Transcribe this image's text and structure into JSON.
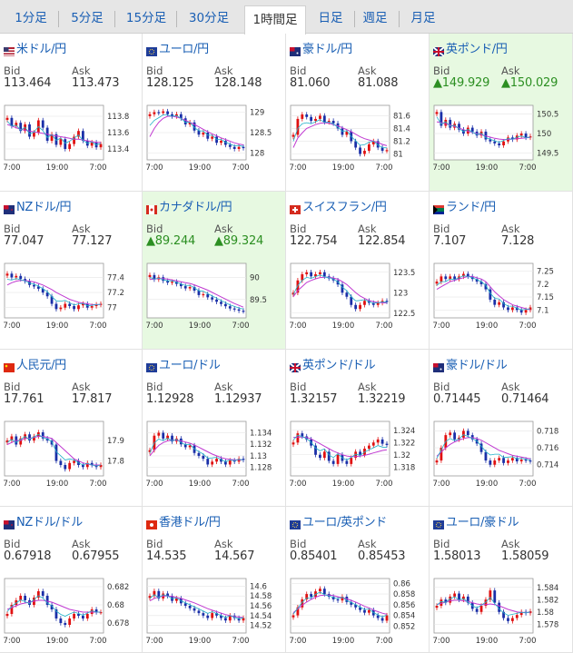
{
  "tabs": [
    {
      "label": "1分足",
      "active": false
    },
    {
      "label": "5分足",
      "active": false
    },
    {
      "label": "15分足",
      "active": false
    },
    {
      "label": "30分足",
      "active": false
    },
    {
      "label": "1時間足",
      "active": true
    },
    {
      "label": "日足",
      "active": false
    },
    {
      "label": "週足",
      "active": false
    },
    {
      "label": "月足",
      "active": false
    }
  ],
  "field_labels": {
    "bid": "Bid",
    "ask": "Ask"
  },
  "pairs": [
    {
      "name": "米ドル/円",
      "bid": "113.464",
      "ask": "113.473",
      "trend": "",
      "ticks": [
        "113.8",
        "113.6",
        "113.4"
      ],
      "ymin": 113.3,
      "ymax": 113.9,
      "x_labels": [
        "7:00",
        "19:00",
        "7:00"
      ],
      "candles": [
        113.78,
        113.68,
        113.72,
        113.62,
        113.7,
        113.55,
        113.6,
        113.75,
        113.66,
        113.5,
        113.58,
        113.45,
        113.52,
        113.4,
        113.46,
        113.55,
        113.62,
        113.5,
        113.44,
        113.48,
        113.42,
        113.46
      ],
      "ma": [
        113.7,
        113.68,
        113.66,
        113.64,
        113.63,
        113.62,
        113.61,
        113.6,
        113.59,
        113.58,
        113.57,
        113.56,
        113.55,
        113.54,
        113.53,
        113.52,
        113.52,
        113.51,
        113.5,
        113.49,
        113.48,
        113.48
      ],
      "flag": "us-jp",
      "highlight": false
    },
    {
      "name": "ユーロ/円",
      "bid": "128.125",
      "ask": "128.148",
      "trend": "",
      "ticks": [
        "129",
        "128.5",
        "128"
      ],
      "ymin": 127.9,
      "ymax": 129.1,
      "x_labels": [
        "7:00",
        "19:00",
        "7:00"
      ],
      "candles": [
        128.95,
        129.0,
        128.98,
        129.02,
        128.95,
        128.9,
        128.95,
        128.85,
        128.7,
        128.75,
        128.55,
        128.45,
        128.5,
        128.35,
        128.4,
        128.25,
        128.3,
        128.2,
        128.15,
        128.1,
        128.15,
        128.12
      ],
      "ma": [
        128.4,
        128.6,
        128.75,
        128.85,
        128.9,
        128.9,
        128.88,
        128.85,
        128.8,
        128.75,
        128.7,
        128.64,
        128.58,
        128.52,
        128.47,
        128.42,
        128.37,
        128.33,
        128.29,
        128.25,
        128.22,
        128.2
      ],
      "flag": "eu-jp",
      "highlight": false
    },
    {
      "name": "豪ドル/円",
      "bid": "81.060",
      "ask": "81.088",
      "trend": "",
      "ticks": [
        "81.6",
        "81.4",
        "81.2",
        "81"
      ],
      "ymin": 80.95,
      "ymax": 81.72,
      "x_labels": [
        "7:00",
        "19:00",
        "7:00"
      ],
      "candles": [
        81.3,
        81.55,
        81.62,
        81.58,
        81.52,
        81.55,
        81.6,
        81.5,
        81.52,
        81.48,
        81.4,
        81.3,
        81.35,
        81.2,
        81.1,
        81.0,
        81.05,
        81.15,
        81.2,
        81.1,
        81.05,
        81.06
      ],
      "ma": [
        81.1,
        81.25,
        81.33,
        81.4,
        81.43,
        81.46,
        81.48,
        81.49,
        81.48,
        81.46,
        81.44,
        81.41,
        81.38,
        81.35,
        81.31,
        81.27,
        81.24,
        81.22,
        81.2,
        81.18,
        81.15,
        81.13
      ],
      "flag": "au-jp",
      "highlight": false
    },
    {
      "name": "英ポンド/円",
      "bid": "▲149.929",
      "ask": "▲150.029",
      "trend": "up",
      "ticks": [
        "150.5",
        "150",
        "149.5"
      ],
      "ymin": 149.4,
      "ymax": 150.65,
      "x_labels": [
        "7:00",
        "19:00",
        "7:00"
      ],
      "candles": [
        150.55,
        150.2,
        150.35,
        150.15,
        150.25,
        150.1,
        150.0,
        150.15,
        150.05,
        149.95,
        150.05,
        149.85,
        149.8,
        149.75,
        149.7,
        149.8,
        149.9,
        149.85,
        149.95,
        150.0,
        149.9,
        149.93
      ],
      "ma": [
        150.3,
        150.28,
        150.25,
        150.22,
        150.18,
        150.14,
        150.1,
        150.06,
        150.03,
        150.0,
        149.97,
        149.94,
        149.91,
        149.88,
        149.86,
        149.85,
        149.85,
        149.86,
        149.87,
        149.88,
        149.89,
        149.9
      ],
      "flag": "gb-jp",
      "highlight": true
    },
    {
      "name": "NZドル/円",
      "bid": "77.047",
      "ask": "77.127",
      "trend": "",
      "ticks": [
        "77.4",
        "77.2",
        "77"
      ],
      "ymin": 76.9,
      "ymax": 77.55,
      "x_labels": [
        "7:00",
        "19:00",
        "7:00"
      ],
      "candles": [
        77.45,
        77.4,
        77.42,
        77.38,
        77.35,
        77.3,
        77.28,
        77.25,
        77.2,
        77.15,
        77.05,
        76.98,
        77.0,
        77.05,
        77.02,
        76.98,
        77.03,
        77.05,
        77.0,
        77.02,
        77.04,
        77.05
      ],
      "ma": [
        77.3,
        77.33,
        77.35,
        77.36,
        77.36,
        77.35,
        77.34,
        77.32,
        77.3,
        77.27,
        77.24,
        77.2,
        77.17,
        77.14,
        77.11,
        77.09,
        77.07,
        77.06,
        77.05,
        77.04,
        77.04,
        77.04
      ],
      "flag": "nz-jp",
      "highlight": false
    },
    {
      "name": "カナダドル/円",
      "bid": "▲89.244",
      "ask": "▲89.324",
      "trend": "up",
      "ticks": [
        "90",
        "89.5"
      ],
      "ymin": 89.15,
      "ymax": 90.25,
      "x_labels": [
        "7:00",
        "19:00",
        "7:00"
      ],
      "candles": [
        90.05,
        89.95,
        90.0,
        89.92,
        89.88,
        89.9,
        89.85,
        89.8,
        89.75,
        89.78,
        89.7,
        89.6,
        89.62,
        89.55,
        89.5,
        89.45,
        89.4,
        89.35,
        89.3,
        89.28,
        89.25,
        89.24
      ],
      "ma": [
        89.95,
        89.96,
        89.97,
        89.97,
        89.96,
        89.94,
        89.92,
        89.9,
        89.88,
        89.86,
        89.83,
        89.79,
        89.75,
        89.71,
        89.66,
        89.61,
        89.56,
        89.51,
        89.46,
        89.41,
        89.37,
        89.33
      ],
      "flag": "ca-jp",
      "highlight": true
    },
    {
      "name": "スイスフラン/円",
      "bid": "122.754",
      "ask": "122.854",
      "trend": "",
      "ticks": [
        "123.5",
        "123",
        "122.5"
      ],
      "ymin": 122.45,
      "ymax": 123.65,
      "x_labels": [
        "7:00",
        "19:00",
        "7:00"
      ],
      "candles": [
        123.0,
        123.3,
        123.45,
        123.5,
        123.4,
        123.45,
        123.5,
        123.4,
        123.35,
        123.3,
        123.2,
        123.0,
        122.9,
        122.7,
        122.6,
        122.7,
        122.8,
        122.75,
        122.7,
        122.75,
        122.8,
        122.78
      ],
      "ma": [
        122.9,
        123.05,
        123.15,
        123.25,
        123.3,
        123.34,
        123.37,
        123.38,
        123.38,
        123.36,
        123.33,
        123.27,
        123.2,
        123.1,
        123.0,
        122.92,
        122.86,
        122.81,
        122.78,
        122.76,
        122.75,
        122.75
      ],
      "flag": "ch-jp",
      "highlight": false
    },
    {
      "name": "ランド/円",
      "bid": "7.107",
      "ask": "7.128",
      "trend": "",
      "ticks": [
        "7.25",
        "7.2",
        "7.15",
        "7.1"
      ],
      "ymin": 7.08,
      "ymax": 7.27,
      "x_labels": [
        "7:00",
        "19:00",
        "7:00"
      ],
      "candles": [
        7.21,
        7.23,
        7.22,
        7.23,
        7.22,
        7.23,
        7.24,
        7.23,
        7.22,
        7.21,
        7.2,
        7.18,
        7.14,
        7.12,
        7.13,
        7.11,
        7.1,
        7.11,
        7.1,
        7.09,
        7.1,
        7.11
      ],
      "ma": [
        7.18,
        7.19,
        7.2,
        7.21,
        7.215,
        7.22,
        7.225,
        7.23,
        7.23,
        7.225,
        7.22,
        7.21,
        7.19,
        7.17,
        7.155,
        7.14,
        7.13,
        7.12,
        7.115,
        7.11,
        7.105,
        7.1
      ],
      "flag": "za-jp",
      "highlight": false
    },
    {
      "name": "人民元/円",
      "bid": "17.761",
      "ask": "17.817",
      "trend": "",
      "ticks": [
        "17.9",
        "17.8"
      ],
      "ymin": 17.74,
      "ymax": 17.98,
      "x_labels": [
        "7:00",
        "19:00",
        "7:00"
      ],
      "candles": [
        17.9,
        17.92,
        17.88,
        17.91,
        17.93,
        17.9,
        17.92,
        17.94,
        17.91,
        17.9,
        17.88,
        17.8,
        17.78,
        17.76,
        17.79,
        17.8,
        17.78,
        17.77,
        17.79,
        17.78,
        17.77,
        17.78
      ],
      "ma": [
        17.88,
        17.89,
        17.9,
        17.9,
        17.91,
        17.91,
        17.915,
        17.92,
        17.92,
        17.915,
        17.91,
        17.89,
        17.87,
        17.85,
        17.83,
        17.81,
        17.8,
        17.79,
        17.785,
        17.78,
        17.78,
        17.78
      ],
      "flag": "cn-jp",
      "highlight": false
    },
    {
      "name": "ユーロ/ドル",
      "bid": "1.12928",
      "ask": "1.12937",
      "trend": "",
      "ticks": [
        "1.134",
        "1.132",
        "1.13",
        "1.128"
      ],
      "ymin": 1.127,
      "ymax": 1.1355,
      "x_labels": [
        "7:00",
        "19:00",
        "7:00"
      ],
      "candles": [
        1.131,
        1.1335,
        1.134,
        1.133,
        1.1335,
        1.1325,
        1.133,
        1.132,
        1.1315,
        1.1318,
        1.1305,
        1.13,
        1.1295,
        1.1285,
        1.129,
        1.1295,
        1.129,
        1.1285,
        1.1292,
        1.129,
        1.1295,
        1.1293
      ],
      "ma": [
        1.13,
        1.131,
        1.1318,
        1.1323,
        1.1326,
        1.1327,
        1.1327,
        1.1326,
        1.1324,
        1.1322,
        1.1319,
        1.1315,
        1.1311,
        1.1307,
        1.1303,
        1.13,
        1.1297,
        1.1295,
        1.1294,
        1.1293,
        1.1293,
        1.1293
      ],
      "flag": "eu-us",
      "highlight": false
    },
    {
      "name": "英ポンド/ドル",
      "bid": "1.32157",
      "ask": "1.32219",
      "trend": "",
      "ticks": [
        "1.324",
        "1.322",
        "1.32",
        "1.318"
      ],
      "ymin": 1.317,
      "ymax": 1.325,
      "x_labels": [
        "7:00",
        "19:00",
        "7:00"
      ],
      "candles": [
        1.322,
        1.3235,
        1.323,
        1.3225,
        1.3215,
        1.32,
        1.3195,
        1.3205,
        1.319,
        1.3185,
        1.32,
        1.319,
        1.3185,
        1.3195,
        1.3205,
        1.32,
        1.321,
        1.3215,
        1.322,
        1.3225,
        1.3218,
        1.3216
      ],
      "ma": [
        1.3228,
        1.3229,
        1.3229,
        1.3228,
        1.3226,
        1.3222,
        1.3218,
        1.3214,
        1.321,
        1.3206,
        1.3203,
        1.32,
        1.3198,
        1.3197,
        1.3197,
        1.3198,
        1.3199,
        1.3201,
        1.3203,
        1.3205,
        1.3207,
        1.3208
      ],
      "flag": "gb-us",
      "highlight": false
    },
    {
      "name": "豪ドル/ドル",
      "bid": "0.71445",
      "ask": "0.71464",
      "trend": "",
      "ticks": [
        "0.718",
        "0.716",
        "0.714"
      ],
      "ymin": 0.713,
      "ymax": 0.7188,
      "x_labels": [
        "7:00",
        "19:00",
        "7:00"
      ],
      "candles": [
        0.7145,
        0.716,
        0.7175,
        0.7178,
        0.717,
        0.7172,
        0.718,
        0.7175,
        0.717,
        0.7165,
        0.7155,
        0.7145,
        0.714,
        0.7145,
        0.7148,
        0.7142,
        0.7145,
        0.7148,
        0.7144,
        0.7146,
        0.7145,
        0.7144
      ],
      "ma": [
        0.715,
        0.7155,
        0.716,
        0.7164,
        0.7167,
        0.7169,
        0.7171,
        0.7172,
        0.7172,
        0.7171,
        0.7169,
        0.7166,
        0.7163,
        0.716,
        0.7157,
        0.7155,
        0.7153,
        0.7151,
        0.715,
        0.7149,
        0.7148,
        0.7147
      ],
      "flag": "au-us",
      "highlight": false
    },
    {
      "name": "NZドル/ドル",
      "bid": "0.67918",
      "ask": "0.67955",
      "trend": "",
      "ticks": [
        "0.682",
        "0.68",
        "0.678"
      ],
      "ymin": 0.6772,
      "ymax": 0.6826,
      "x_labels": [
        "7:00",
        "19:00",
        "7:00"
      ],
      "candles": [
        0.679,
        0.68,
        0.6805,
        0.681,
        0.6805,
        0.68,
        0.6808,
        0.6815,
        0.681,
        0.68,
        0.6795,
        0.6785,
        0.678,
        0.6778,
        0.6785,
        0.679,
        0.6788,
        0.6785,
        0.679,
        0.6795,
        0.6792,
        0.6792
      ],
      "ma": [
        0.6795,
        0.6797,
        0.6799,
        0.6801,
        0.6802,
        0.6803,
        0.6804,
        0.6805,
        0.6805,
        0.6804,
        0.6803,
        0.6801,
        0.6799,
        0.6797,
        0.6795,
        0.6794,
        0.6793,
        0.6792,
        0.6792,
        0.6792,
        0.6792,
        0.6792
      ],
      "flag": "nz-us",
      "highlight": false
    },
    {
      "name": "香港ドル/円",
      "bid": "14.535",
      "ask": "14.567",
      "trend": "",
      "ticks": [
        "14.6",
        "14.58",
        "14.56",
        "14.54",
        "14.52"
      ],
      "ymin": 14.51,
      "ymax": 14.61,
      "x_labels": [
        "7:00",
        "19:00",
        "7:00"
      ],
      "candles": [
        14.58,
        14.59,
        14.575,
        14.585,
        14.58,
        14.57,
        14.575,
        14.565,
        14.56,
        14.555,
        14.55,
        14.545,
        14.54,
        14.535,
        14.545,
        14.54,
        14.535,
        14.53,
        14.54,
        14.535,
        14.53,
        14.535
      ],
      "ma": [
        14.57,
        14.575,
        14.578,
        14.58,
        14.58,
        14.579,
        14.577,
        14.575,
        14.572,
        14.569,
        14.566,
        14.562,
        14.558,
        14.554,
        14.551,
        14.548,
        14.545,
        14.542,
        14.54,
        14.538,
        14.537,
        14.536
      ],
      "flag": "hk-jp",
      "highlight": false
    },
    {
      "name": "ユーロ/英ポンド",
      "bid": "0.85401",
      "ask": "0.85453",
      "trend": "",
      "ticks": [
        "0.86",
        "0.858",
        "0.856",
        "0.854",
        "0.852"
      ],
      "ymin": 0.8512,
      "ymax": 0.8604,
      "x_labels": [
        "7:00",
        "19:00",
        "7:00"
      ],
      "candles": [
        0.854,
        0.8555,
        0.857,
        0.858,
        0.8575,
        0.8585,
        0.859,
        0.858,
        0.8575,
        0.857,
        0.8568,
        0.8575,
        0.8565,
        0.856,
        0.8555,
        0.855,
        0.8545,
        0.855,
        0.854,
        0.8535,
        0.853,
        0.854
      ],
      "ma": [
        0.8545,
        0.8552,
        0.8559,
        0.8565,
        0.857,
        0.8574,
        0.8577,
        0.8578,
        0.8578,
        0.8577,
        0.8575,
        0.8573,
        0.8571,
        0.8568,
        0.8565,
        0.8561,
        0.8557,
        0.8554,
        0.855,
        0.8547,
        0.8544,
        0.8542
      ],
      "flag": "eu-gb",
      "highlight": false
    },
    {
      "name": "ユーロ/豪ドル",
      "bid": "1.58013",
      "ask": "1.58059",
      "trend": "",
      "ticks": [
        "1.584",
        "1.582",
        "1.58",
        "1.578"
      ],
      "ymin": 1.577,
      "ymax": 1.585,
      "x_labels": [
        "7:00",
        "19:00",
        "7:00"
      ],
      "candles": [
        1.581,
        1.582,
        1.5815,
        1.5825,
        1.583,
        1.582,
        1.5825,
        1.5815,
        1.5805,
        1.58,
        1.581,
        1.582,
        1.5835,
        1.5815,
        1.58,
        1.579,
        1.5785,
        1.579,
        1.5795,
        1.58,
        1.5798,
        1.5801
      ],
      "ma": [
        1.5812,
        1.5814,
        1.5816,
        1.5818,
        1.5819,
        1.5819,
        1.5818,
        1.5817,
        1.5815,
        1.5813,
        1.5812,
        1.5812,
        1.5813,
        1.5812,
        1.581,
        1.5807,
        1.5804,
        1.5802,
        1.58,
        1.5799,
        1.5799,
        1.5799
      ],
      "flag": "eu-au",
      "highlight": false
    }
  ]
}
